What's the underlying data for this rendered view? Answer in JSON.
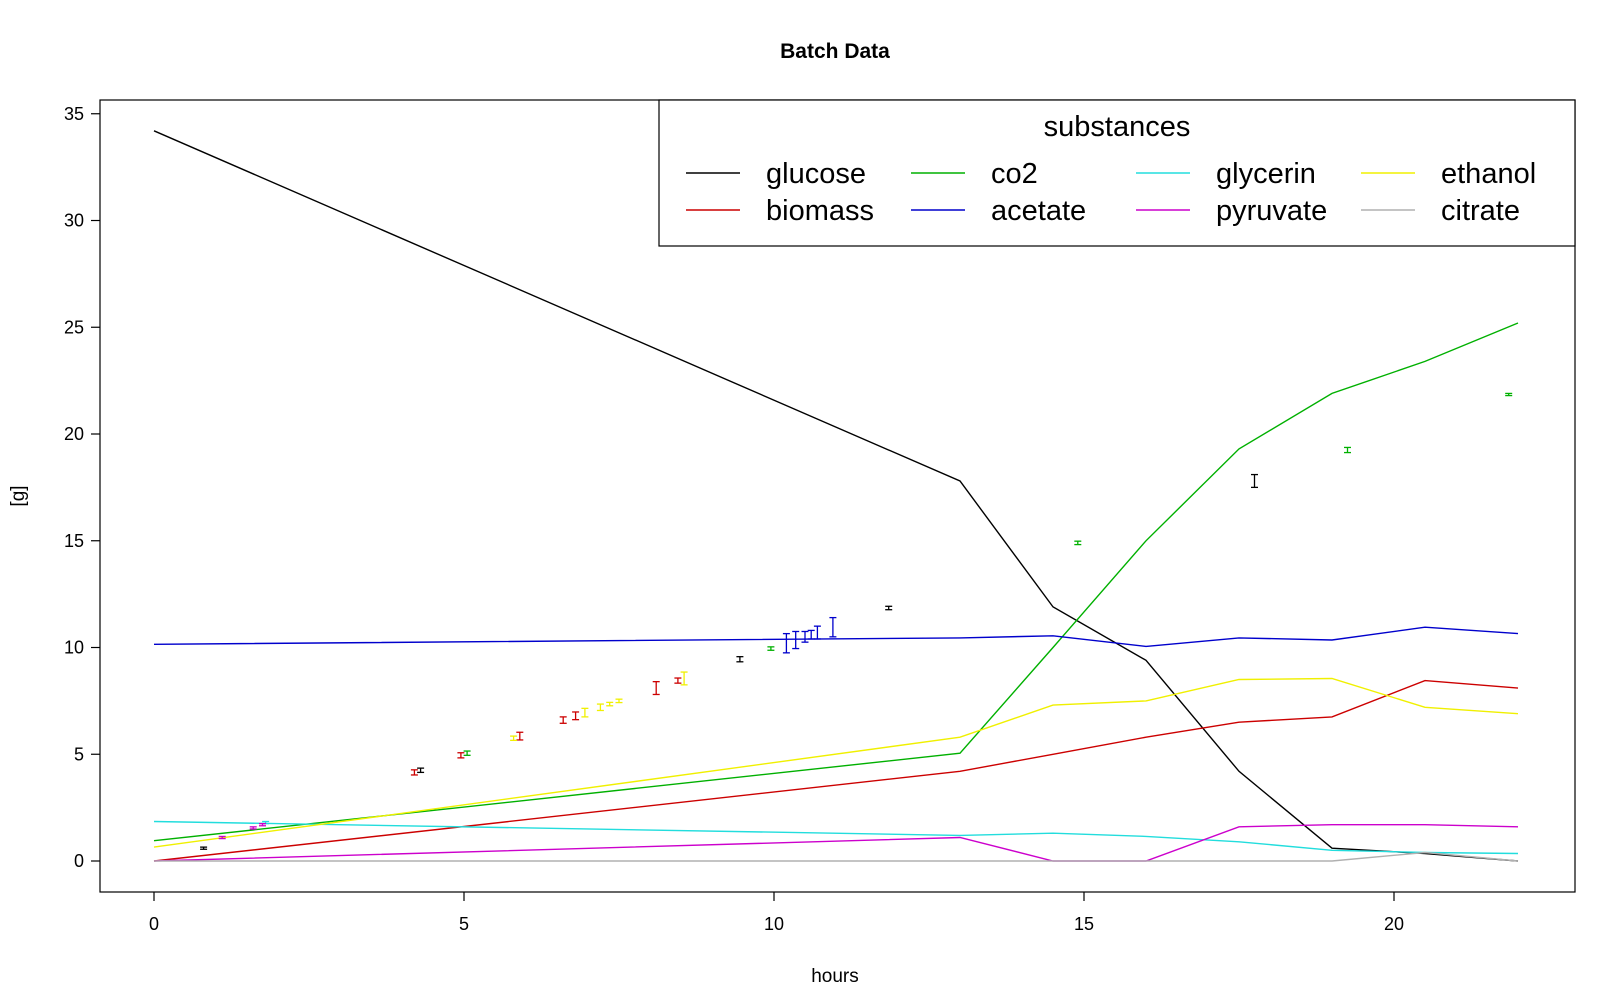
{
  "chart_data": {
    "type": "line",
    "title": "Batch Data",
    "xlabel": "hours",
    "ylabel": "[g]",
    "xlim": [
      -2.2,
      46.6
    ],
    "ylim": [
      -1.35,
      35.9
    ],
    "xticks": [
      0,
      5,
      10,
      15,
      20
    ],
    "yticks": [
      0,
      5,
      10,
      15,
      20,
      25,
      30,
      35
    ],
    "legend": {
      "title": "substances",
      "position": "top-right",
      "columns": 4
    },
    "x": [
      0,
      13,
      14.5,
      16,
      17.5,
      19,
      20.5,
      22
    ],
    "series": [
      {
        "name": "glucose",
        "color": "#000000",
        "values": [
          34.2,
          17.8,
          11.9,
          9.4,
          4.2,
          0.6,
          0.35,
          0.0
        ]
      },
      {
        "name": "biomass",
        "color": "#cc0000",
        "values": [
          0.0,
          4.2,
          5.0,
          5.8,
          6.5,
          6.75,
          8.45,
          8.1
        ]
      },
      {
        "name": "co2",
        "color": "#00b000",
        "values": [
          0.95,
          5.05,
          10.0,
          15.0,
          19.3,
          21.9,
          23.4,
          25.2
        ]
      },
      {
        "name": "acetate",
        "color": "#0000cc",
        "values": [
          10.15,
          10.45,
          10.55,
          10.05,
          10.45,
          10.35,
          10.95,
          10.65
        ]
      },
      {
        "name": "glycerin",
        "color": "#22dddd",
        "values": [
          1.85,
          1.2,
          1.3,
          1.15,
          0.9,
          0.5,
          0.4,
          0.35
        ]
      },
      {
        "name": "pyruvate",
        "color": "#cc00cc",
        "values": [
          0.0,
          1.1,
          0.0,
          0.0,
          1.6,
          1.7,
          1.7,
          1.6
        ]
      },
      {
        "name": "ethanol",
        "color": "#f0f000",
        "values": [
          0.65,
          5.8,
          7.3,
          7.5,
          8.5,
          8.55,
          7.2,
          6.9
        ]
      },
      {
        "name": "citrate",
        "color": "#b0b0b0",
        "values": [
          0.0,
          0.0,
          0.0,
          0.0,
          0.0,
          0.0,
          0.4,
          0.0
        ]
      }
    ],
    "error_bars": [
      {
        "x": 0.8,
        "y": 0.6,
        "err": 0.05,
        "color": "#000000"
      },
      {
        "x": 1.8,
        "y": 1.8,
        "err": 0.05,
        "color": "#22dddd"
      },
      {
        "x": 1.1,
        "y": 1.1,
        "err": 0.05,
        "color": "#cc00cc"
      },
      {
        "x": 1.6,
        "y": 1.55,
        "err": 0.05,
        "color": "#cc00cc"
      },
      {
        "x": 1.75,
        "y": 1.7,
        "err": 0.05,
        "color": "#cc00cc"
      },
      {
        "x": 4.2,
        "y": 4.15,
        "err": 0.12,
        "color": "#cc0000"
      },
      {
        "x": 4.3,
        "y": 4.25,
        "err": 0.1,
        "color": "#000000"
      },
      {
        "x": 4.95,
        "y": 4.95,
        "err": 0.12,
        "color": "#cc0000"
      },
      {
        "x": 5.05,
        "y": 5.05,
        "err": 0.1,
        "color": "#00b000"
      },
      {
        "x": 5.9,
        "y": 5.85,
        "err": 0.18,
        "color": "#cc0000"
      },
      {
        "x": 5.8,
        "y": 5.75,
        "err": 0.1,
        "color": "#f0f000"
      },
      {
        "x": 6.6,
        "y": 6.6,
        "err": 0.15,
        "color": "#cc0000"
      },
      {
        "x": 6.8,
        "y": 6.8,
        "err": 0.18,
        "color": "#cc0000"
      },
      {
        "x": 6.95,
        "y": 6.95,
        "err": 0.2,
        "color": "#f0f000"
      },
      {
        "x": 7.2,
        "y": 7.2,
        "err": 0.15,
        "color": "#f0f000"
      },
      {
        "x": 7.35,
        "y": 7.35,
        "err": 0.08,
        "color": "#f0f000"
      },
      {
        "x": 7.5,
        "y": 7.5,
        "err": 0.08,
        "color": "#f0f000"
      },
      {
        "x": 8.1,
        "y": 8.1,
        "err": 0.3,
        "color": "#cc0000"
      },
      {
        "x": 8.45,
        "y": 8.45,
        "err": 0.12,
        "color": "#cc0000"
      },
      {
        "x": 8.55,
        "y": 8.55,
        "err": 0.3,
        "color": "#f0f000"
      },
      {
        "x": 9.45,
        "y": 9.45,
        "err": 0.12,
        "color": "#000000"
      },
      {
        "x": 9.95,
        "y": 9.95,
        "err": 0.08,
        "color": "#00b000"
      },
      {
        "x": 10.2,
        "y": 10.2,
        "err": 0.45,
        "color": "#0000cc"
      },
      {
        "x": 10.35,
        "y": 10.35,
        "err": 0.4,
        "color": "#0000cc"
      },
      {
        "x": 10.5,
        "y": 10.5,
        "err": 0.25,
        "color": "#0000cc"
      },
      {
        "x": 10.6,
        "y": 10.6,
        "err": 0.2,
        "color": "#0000cc"
      },
      {
        "x": 10.7,
        "y": 10.7,
        "err": 0.3,
        "color": "#0000cc"
      },
      {
        "x": 10.95,
        "y": 10.95,
        "err": 0.45,
        "color": "#0000cc"
      },
      {
        "x": 11.85,
        "y": 11.85,
        "err": 0.08,
        "color": "#000000"
      },
      {
        "x": 14.9,
        "y": 14.9,
        "err": 0.08,
        "color": "#00b000"
      },
      {
        "x": 17.75,
        "y": 17.8,
        "err": 0.3,
        "color": "#000000"
      },
      {
        "x": 19.25,
        "y": 19.25,
        "err": 0.12,
        "color": "#00b000"
      },
      {
        "x": 21.85,
        "y": 21.85,
        "err": 0.05,
        "color": "#00b000"
      }
    ]
  }
}
